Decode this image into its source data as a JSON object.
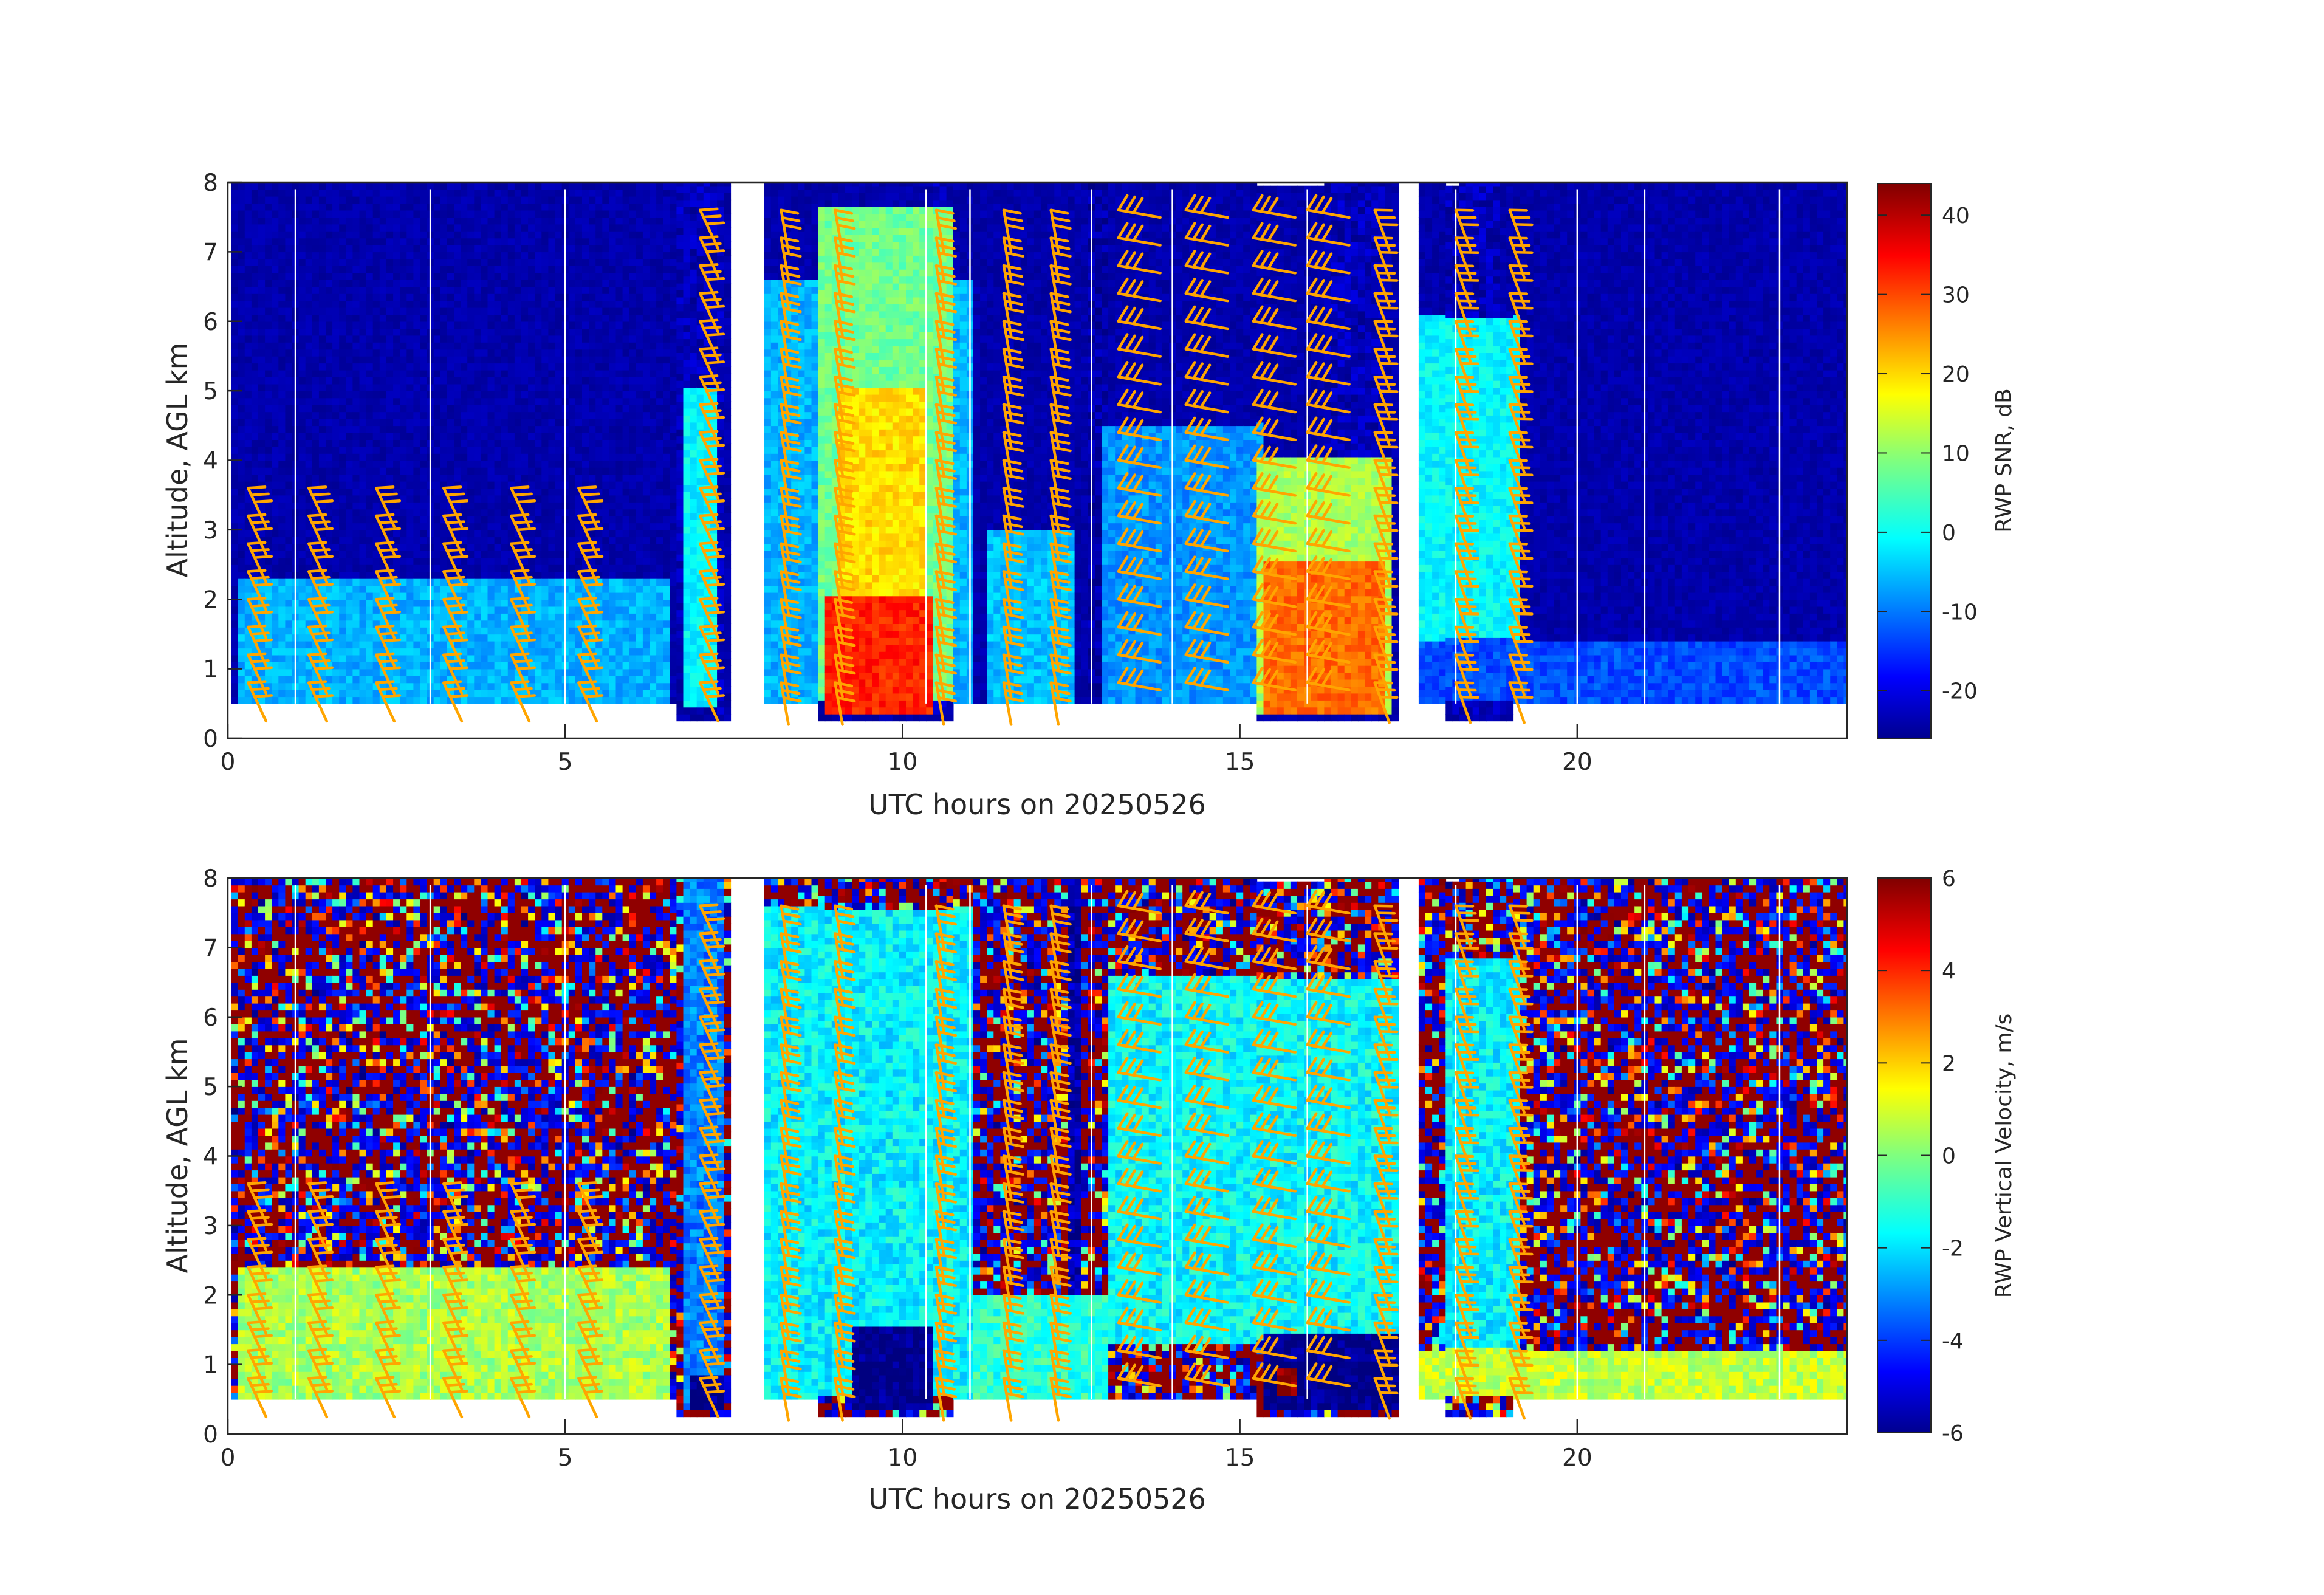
{
  "figure": {
    "background": "#ffffff"
  },
  "chart_data": [
    {
      "type": "heatmap",
      "panel": "top",
      "xlabel": "UTC hours on 20250526",
      "ylabel": "Altitude, AGL km",
      "xlim": [
        0,
        24
      ],
      "ylim": [
        0,
        8
      ],
      "xticks": [
        0,
        5,
        10,
        15,
        20
      ],
      "yticks": [
        0,
        1,
        2,
        3,
        4,
        5,
        6,
        7,
        8
      ],
      "colorbar": {
        "label": "RWP SNR, dB",
        "range": [
          -26,
          44
        ],
        "ticks": [
          -20,
          -10,
          0,
          10,
          20,
          30,
          40
        ],
        "colormap": "jet"
      },
      "background_value": -23,
      "data_gaps_hours": [
        [
          7.35,
          7.85
        ],
        [
          17.25,
          17.55
        ]
      ],
      "vertical_white_lines_hours": [
        1.0,
        3.0,
        5.0,
        10.35,
        11.0,
        12.8,
        14.0,
        16.0,
        18.2,
        20.0,
        21.0,
        23.0
      ],
      "features": [
        {
          "x": [
            6.6,
            7.3
          ],
          "y": [
            0.3,
            8.0
          ],
          "value": -22,
          "label": "dark column"
        },
        {
          "x": [
            10.3,
            10.6
          ],
          "y": [
            0.3,
            8.0
          ],
          "value": -22,
          "label": "dark column"
        },
        {
          "x": [
            12.7,
            12.95
          ],
          "y": [
            0.3,
            8.0
          ],
          "value": -23,
          "label": "dark column"
        },
        {
          "x": [
            16.2,
            17.1
          ],
          "y": [
            0.3,
            8.0
          ],
          "value": -22,
          "label": "dark column"
        },
        {
          "x": [
            18.0,
            18.8
          ],
          "y": [
            0.3,
            8.0
          ],
          "value": -22,
          "label": "dark column"
        },
        {
          "x": [
            0.1,
            6.5
          ],
          "y": [
            0.5,
            2.3
          ],
          "value": -5,
          "label": "boundary layer returns"
        },
        {
          "x": [
            6.7,
            7.2
          ],
          "y": [
            0.4,
            5.0
          ],
          "value": 0,
          "label": "convective column"
        },
        {
          "x": [
            7.9,
            11.0
          ],
          "y": [
            0.5,
            6.5
          ],
          "value": -5,
          "label": "broad cloud"
        },
        {
          "x": [
            8.7,
            10.7
          ],
          "y": [
            0.5,
            7.6
          ],
          "value": 8,
          "label": "deep convection"
        },
        {
          "x": [
            9.0,
            10.3
          ],
          "y": [
            1.0,
            5.0
          ],
          "value": 20,
          "label": "intense core"
        },
        {
          "x": [
            8.8,
            10.4
          ],
          "y": [
            0.3,
            2.0
          ],
          "value": 33,
          "label": "precipitation"
        },
        {
          "x": [
            11.2,
            12.5
          ],
          "y": [
            0.5,
            3.0
          ],
          "value": -4,
          "label": "shallow convection"
        },
        {
          "x": [
            12.9,
            15.3
          ],
          "y": [
            0.5,
            4.5
          ],
          "value": -7,
          "label": "weak returns"
        },
        {
          "x": [
            15.2,
            17.2
          ],
          "y": [
            0.3,
            4.0
          ],
          "value": 12,
          "label": "convective rain"
        },
        {
          "x": [
            15.3,
            17.1
          ],
          "y": [
            0.3,
            2.5
          ],
          "value": 28,
          "label": "rain core"
        },
        {
          "x": [
            17.6,
            19.1
          ],
          "y": [
            0.5,
            6.0
          ],
          "value": 0,
          "label": "anvil"
        },
        {
          "x": [
            17.6,
            24.0
          ],
          "y": [
            0.5,
            1.4
          ],
          "value": -12,
          "label": "weak boundary returns"
        }
      ]
    },
    {
      "type": "heatmap",
      "panel": "bottom",
      "xlabel": "UTC hours on 20250526",
      "ylabel": "Altitude, AGL km",
      "xlim": [
        0,
        24
      ],
      "ylim": [
        0,
        8
      ],
      "xticks": [
        0,
        5,
        10,
        15,
        20
      ],
      "yticks": [
        0,
        1,
        2,
        3,
        4,
        5,
        6,
        7,
        8
      ],
      "colorbar": {
        "label": "RWP Vertical Velocity, m/s",
        "range": [
          -6,
          6
        ],
        "ticks": [
          -6,
          -4,
          -2,
          0,
          2,
          4,
          6
        ],
        "colormap": "jet"
      },
      "background": "noise",
      "data_gaps_hours": [
        [
          7.35,
          7.85
        ],
        [
          17.25,
          17.55
        ]
      ],
      "vertical_white_lines_hours": [
        1.0,
        3.0,
        5.0,
        10.35,
        11.0,
        12.8,
        14.0,
        16.0,
        18.2,
        20.0,
        21.0,
        23.0
      ],
      "features": [
        {
          "x": [
            0.1,
            6.5
          ],
          "y": [
            0.5,
            2.4
          ],
          "value": 0.5,
          "label": "weak motion"
        },
        {
          "x": [
            6.7,
            7.3
          ],
          "y": [
            0.3,
            8.0
          ],
          "value": -3.0,
          "label": "downward column"
        },
        {
          "x": [
            6.8,
            7.3
          ],
          "y": [
            0.3,
            0.8
          ],
          "value": -6.0,
          "label": "strong downward"
        },
        {
          "x": [
            7.9,
            11.0
          ],
          "y": [
            0.5,
            7.5
          ],
          "value": -1.6,
          "label": "precipitation fall"
        },
        {
          "x": [
            9.2,
            10.4
          ],
          "y": [
            0.3,
            1.5
          ],
          "value": -6.0,
          "label": "heavy rain fall"
        },
        {
          "x": [
            12.4,
            12.55
          ],
          "y": [
            0.0,
            8.0
          ],
          "value": -5.5,
          "label": "spike"
        },
        {
          "x": [
            11.0,
            13.0
          ],
          "y": [
            0.5,
            2.0
          ],
          "value": -1.0,
          "label": "weak downward"
        },
        {
          "x": [
            13.0,
            17.3
          ],
          "y": [
            1.3,
            6.5
          ],
          "value": -1.5,
          "label": "stratiform fall"
        },
        {
          "x": [
            15.3,
            17.3
          ],
          "y": [
            0.3,
            1.4
          ],
          "value": -6.0,
          "label": "heavy rain fall"
        },
        {
          "x": [
            15.5,
            15.8
          ],
          "y": [
            0.5,
            0.9
          ],
          "value": 5.8,
          "label": "updraft patch"
        },
        {
          "x": [
            18.0,
            19.1
          ],
          "y": [
            0.5,
            6.8
          ],
          "value": -1.6,
          "label": "anvil fall"
        },
        {
          "x": [
            17.6,
            24.0
          ],
          "y": [
            0.5,
            1.2
          ],
          "value": 0.8,
          "label": "weak motion"
        }
      ]
    }
  ],
  "wind_barbs": {
    "color": "#ffa500",
    "columns_hours": [
      0.3,
      1.2,
      2.2,
      3.2,
      4.2,
      5.2,
      7.0,
      8.2,
      9.0,
      10.5,
      11.5,
      12.2,
      13.2,
      14.2,
      15.2,
      16.0,
      17.0,
      18.2,
      19.0
    ],
    "levels_km": [
      0.8,
      1.2,
      1.6,
      2.0,
      2.4,
      2.8,
      3.2,
      3.6,
      4.0,
      4.4,
      4.8,
      5.2,
      5.6,
      6.0,
      6.4,
      6.8,
      7.2,
      7.6
    ]
  }
}
